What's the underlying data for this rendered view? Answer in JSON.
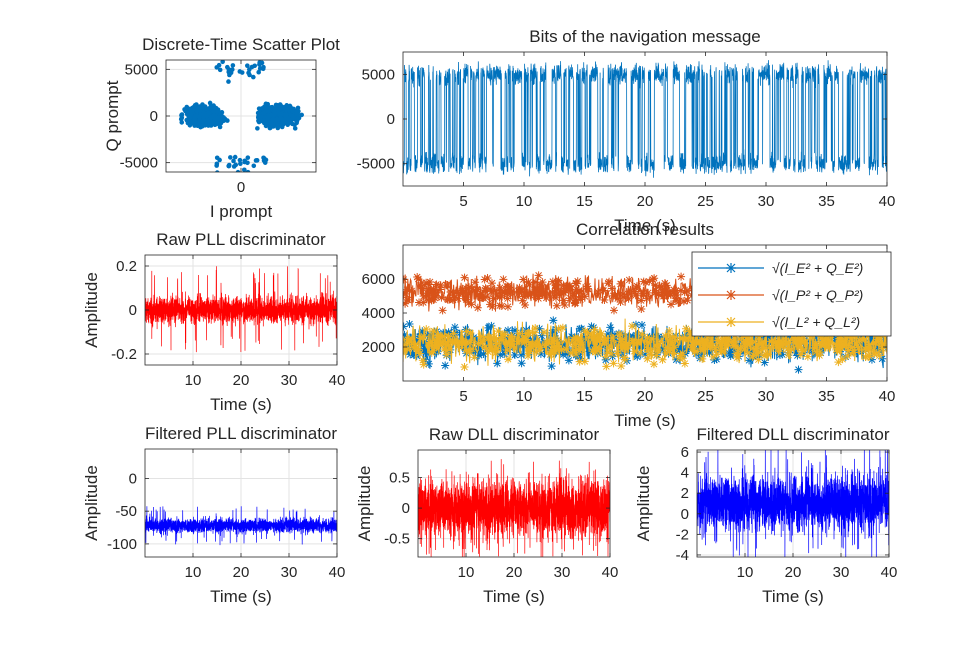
{
  "chart_data": [
    {
      "id": "scatter",
      "type": "scatter",
      "title": "Discrete-Time Scatter Plot",
      "xlabel": "I prompt",
      "ylabel": "Q prompt",
      "xlim": [
        -7500,
        7500
      ],
      "ylim": [
        -6000,
        6000
      ],
      "xticks": [
        0
      ],
      "yticks": [
        -5000,
        0,
        5000
      ],
      "grid": true,
      "color": "#0072BD",
      "clusters": [
        {
          "center": [
            -3700,
            0
          ],
          "spread": [
            1900,
            1000
          ],
          "points": 700
        },
        {
          "center": [
            3700,
            0
          ],
          "spread": [
            1900,
            1000
          ],
          "points": 700
        }
      ],
      "outliers": {
        "top_y": 5000,
        "bottom_y": -5000,
        "x_range": [
          -2500,
          2500
        ],
        "points": 60
      }
    },
    {
      "id": "nav",
      "type": "line",
      "title": "Bits of the navigation message",
      "xlabel": "Time (s)",
      "ylabel": "",
      "xlim": [
        0,
        40
      ],
      "ylim": [
        -7500,
        7500
      ],
      "xticks": [
        5,
        10,
        15,
        20,
        25,
        30,
        35,
        40
      ],
      "yticks": [
        -5000,
        0,
        5000
      ],
      "grid": false,
      "color": "#0072BD",
      "levels": [
        -5000,
        5000
      ],
      "noise": 900,
      "bit_period_s": 0.02
    },
    {
      "id": "rawpll",
      "type": "line",
      "title": "Raw PLL discriminator",
      "xlabel": "Time (s)",
      "ylabel": "Amplitude",
      "xlim": [
        0,
        40
      ],
      "ylim": [
        -0.25,
        0.25
      ],
      "xticks": [
        10,
        20,
        30,
        40
      ],
      "yticks": [
        -0.2,
        0,
        0.2
      ],
      "grid": true,
      "color": "#FF0000",
      "mean": 0,
      "spread": 0.05,
      "spikes": 0.2
    },
    {
      "id": "corr",
      "type": "line",
      "title": "Correlation results",
      "xlabel": "Time (s)",
      "ylabel": "",
      "xlim": [
        0,
        40
      ],
      "ylim": [
        0,
        8000
      ],
      "xticks": [
        5,
        10,
        15,
        20,
        25,
        30,
        35,
        40
      ],
      "yticks": [
        2000,
        4000,
        6000
      ],
      "grid": false,
      "legend_position": "top-right",
      "series": [
        {
          "name": "√(I_E² + Q_E²)",
          "color": "#0072BD",
          "mean": 2200,
          "spread": 900
        },
        {
          "name": "√(I_P² + Q_P²)",
          "color": "#D95319",
          "mean": 5200,
          "spread": 800
        },
        {
          "name": "√(I_L² + Q_L²)",
          "color": "#EDB120",
          "mean": 2200,
          "spread": 900
        }
      ]
    },
    {
      "id": "filtpll",
      "type": "line",
      "title": "Filtered PLL discriminator",
      "xlabel": "Time (s)",
      "ylabel": "Amplitude",
      "xlim": [
        0,
        40
      ],
      "ylim": [
        -120,
        45
      ],
      "xticks": [
        10,
        20,
        30,
        40
      ],
      "yticks": [
        -100,
        -50,
        0
      ],
      "grid": true,
      "color": "#0000FF",
      "mean": -72,
      "spread": 9,
      "spikes": 30
    },
    {
      "id": "rawdll",
      "type": "line",
      "title": "Raw DLL discriminator",
      "xlabel": "Time (s)",
      "ylabel": "Amplitude",
      "xlim": [
        0,
        40
      ],
      "ylim": [
        -0.8,
        0.95
      ],
      "xticks": [
        10,
        20,
        30,
        40
      ],
      "yticks": [
        -0.5,
        0,
        0.5
      ],
      "grid": true,
      "color": "#FF0000",
      "mean": 0,
      "spread": 0.38,
      "spikes": 0.85
    },
    {
      "id": "filtdll",
      "type": "line",
      "title": "Filtered DLL discriminator",
      "xlabel": "Time (s)",
      "ylabel": "Amplitude",
      "xlim": [
        0,
        40
      ],
      "ylim": [
        -4.2,
        6.2
      ],
      "xticks": [
        10,
        20,
        30,
        40
      ],
      "yticks": [
        -4,
        -2,
        0,
        2,
        4,
        6
      ],
      "grid": true,
      "color": "#0000FF",
      "mean": 1,
      "spread": 2.2,
      "spikes": 5.6
    }
  ]
}
